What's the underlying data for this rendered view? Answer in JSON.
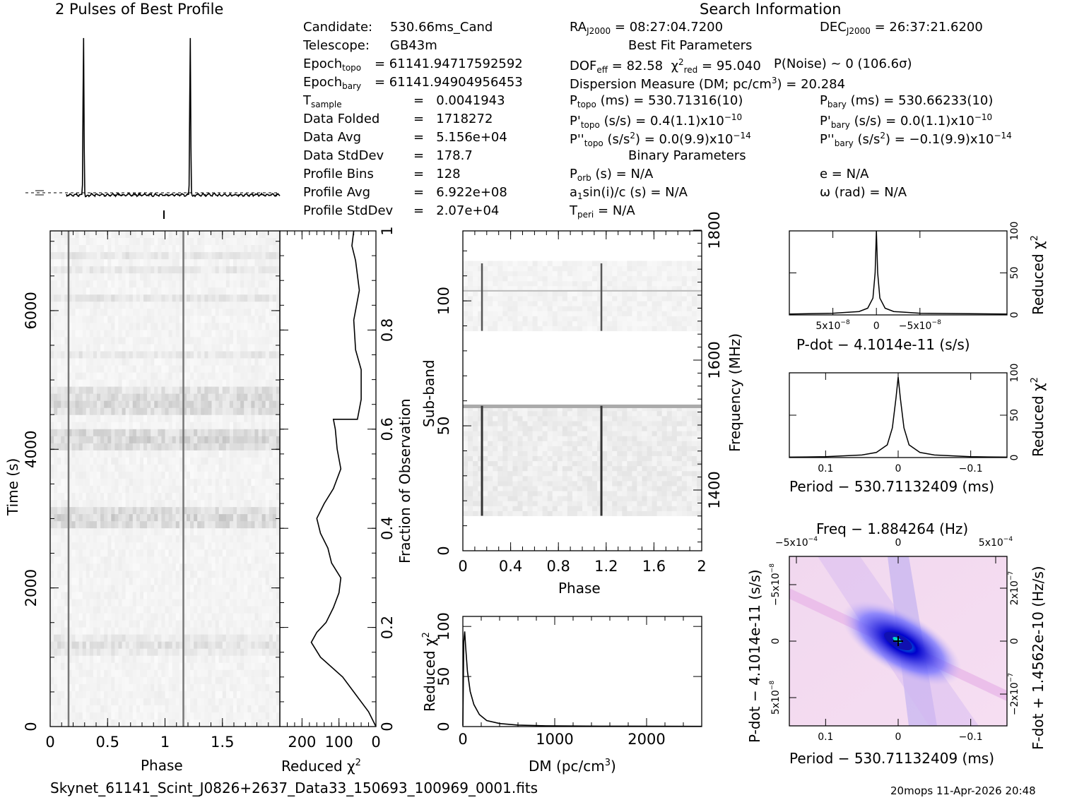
{
  "header": {
    "profile_title": "2 Pulses of Best Profile",
    "search_title": "Search Information"
  },
  "info_left": [
    {
      "k": "Candidate:",
      "v": "530.66ms_Cand"
    },
    {
      "k": "Telescope:",
      "v": "GB43m"
    },
    {
      "k": "Epoch",
      "sub": "topo",
      "v": "= 61141.94717592592"
    },
    {
      "k": "Epoch",
      "sub": "bary",
      "v": "= 61141.94904956453"
    },
    {
      "k": "T",
      "sub": "sample",
      "v": "=   0.0041943"
    },
    {
      "k": "Data Folded",
      "v": "=   1718272"
    },
    {
      "k": "Data Avg",
      "v": "=   5.156e+04"
    },
    {
      "k": "Data StdDev",
      "v": "=   178.7"
    },
    {
      "k": "Profile Bins",
      "v": "=   128"
    },
    {
      "k": "Profile Avg",
      "v": "=   6.922e+08"
    },
    {
      "k": "Profile StdDev",
      "v": "=   2.07e+04"
    }
  ],
  "info_mid": {
    "ra": "RA",
    "ra_sub": "J2000",
    "ra_val": "= 08:27:04.7200",
    "best_fit_title": "Best Fit Parameters",
    "dof": "DOF",
    "dof_sub": "eff",
    "dof_val": "= 82.58",
    "chi": "χ",
    "chi_sup": "2",
    "chi_sub": "red",
    "chi_val": "= 95.040",
    "pnoise": "P(Noise) ~ 0    (106.6σ)",
    "dm_line": "Dispersion Measure (DM; pc/cm",
    "dm_sup": "3",
    "dm_val": ") = 20.284",
    "ptopo": "P",
    "ptopo_sub": "topo",
    "ptopo_val": "(ms) =  530.71316(10)",
    "pdtopo": "P'",
    "pdtopo_sub": "topo",
    "pdtopo_val": "(s/s) =  0.4(1.1)x10",
    "pdtopo_exp": "−10",
    "pddtopo": "P''",
    "pddtopo_sub": "topo",
    "pddtopo_val": "(s/s",
    "pddtopo_sup": "2",
    "pddtopo_val2": ") = 0.0(9.9)x10",
    "pddtopo_exp": "−14",
    "binary_title": "Binary Parameters",
    "porb": "P",
    "porb_sub": "orb",
    "porb_val": "(s) = N/A",
    "a1": "a",
    "a1_sub": "1",
    "a1_val": "sin(i)/c (s) = N/A",
    "tperi": "T",
    "tperi_sub": "peri",
    "tperi_val": "= N/A"
  },
  "info_right": {
    "dec": "DEC",
    "dec_sub": "J2000",
    "dec_val": "= 26:37:21.6200",
    "pbary": "P",
    "pbary_sub": "bary",
    "pbary_val": "(ms) =  530.66233(10)",
    "pdbary": "P'",
    "pdbary_sub": "bary",
    "pdbary_val": "(s/s) = 0.0(1.1)x10",
    "pdbary_exp": "−10",
    "pddbary": "P''",
    "pddbary_sub": "bary",
    "pddbary_val": "(s/s",
    "pddbary_sup": "2",
    "pddbary_val2": ") = −0.1(9.9)x10",
    "pddbary_exp": "−14",
    "e": "e = N/A",
    "omega": "ω (rad) = N/A"
  },
  "footer": {
    "filename": "Skynet_61141_Scint_J0826+2637_Data33_150693_100969_0001.fits",
    "stamp": "20mops 11-Apr-2026 20:48"
  },
  "chart_data": [
    {
      "id": "pulse_profile",
      "type": "line",
      "title": "2 Pulses of Best Profile",
      "xlabel": "",
      "ylabel": "",
      "x_range": [
        0,
        2
      ],
      "peaks_phase": [
        0.16,
        1.16
      ]
    },
    {
      "id": "time_phase",
      "type": "heatmap",
      "xlabel": "Phase",
      "ylabel": "Time (s)",
      "xlim": [
        0,
        2
      ],
      "ylim": [
        0,
        7150
      ],
      "x_ticks": [
        "0",
        "0.5",
        "1",
        "1.5"
      ],
      "y_ticks": [
        "0",
        "2000",
        "4000",
        "6000"
      ],
      "pulse_phases": [
        0.16,
        1.16
      ]
    },
    {
      "id": "time_chi2",
      "type": "line",
      "xlabel": "Reduced χ",
      "xlabel_sup": "2",
      "ylabel_right": "Fraction of Observation",
      "xlim": [
        260,
        0
      ],
      "ylim": [
        0,
        1
      ],
      "x_ticks": [
        "200",
        "100",
        "0"
      ],
      "y_ticks": [
        "0",
        "0.2",
        "0.4",
        "0.6",
        "0.8",
        "1"
      ],
      "points": [
        [
          0,
          0
        ],
        [
          20,
          0.03
        ],
        [
          50,
          0.06
        ],
        [
          90,
          0.1
        ],
        [
          150,
          0.14
        ],
        [
          175,
          0.17
        ],
        [
          160,
          0.19
        ],
        [
          135,
          0.21
        ],
        [
          115,
          0.24
        ],
        [
          100,
          0.27
        ],
        [
          95,
          0.3
        ],
        [
          120,
          0.33
        ],
        [
          130,
          0.36
        ],
        [
          150,
          0.39
        ],
        [
          160,
          0.42
        ],
        [
          140,
          0.45
        ],
        [
          115,
          0.48
        ],
        [
          95,
          0.52
        ],
        [
          105,
          0.56
        ],
        [
          110,
          0.6
        ],
        [
          115,
          0.62
        ],
        [
          50,
          0.62
        ],
        [
          40,
          0.66
        ],
        [
          40,
          0.72
        ],
        [
          55,
          0.76
        ],
        [
          60,
          0.82
        ],
        [
          45,
          0.88
        ],
        [
          55,
          0.94
        ],
        [
          65,
          0.97
        ],
        [
          60,
          1.0
        ]
      ]
    },
    {
      "id": "subband_phase",
      "type": "heatmap",
      "xlabel": "Phase",
      "ylabel": "Sub-band",
      "ylabel_right": "Frequency (MHz)",
      "xlim": [
        0,
        2
      ],
      "ylim": [
        0,
        128
      ],
      "x_ticks": [
        "0",
        "0.4",
        "0.8",
        "1.2",
        "1.6",
        "2"
      ],
      "y_ticks": [
        "0",
        "50",
        "100"
      ],
      "right_ticks": [
        "1400",
        "1600",
        "1800"
      ],
      "pulse_phases": [
        0.16,
        1.16
      ],
      "masked_bands": [
        [
          58,
          88
        ],
        [
          115,
          128
        ],
        [
          0,
          14
        ]
      ]
    },
    {
      "id": "dm_curve",
      "type": "line",
      "xlabel": "DM (pc/cm",
      "xlabel_sup": "3",
      "ylabel": "Reduced χ",
      "ylabel_sup": "2",
      "xlim": [
        0,
        2600
      ],
      "ylim": [
        0,
        110
      ],
      "x_ticks": [
        "0",
        "1000",
        "2000"
      ],
      "y_ticks": [
        "0",
        "50",
        "100"
      ],
      "points": [
        [
          0,
          1
        ],
        [
          10,
          85
        ],
        [
          20,
          95
        ],
        [
          30,
          80
        ],
        [
          50,
          55
        ],
        [
          80,
          35
        ],
        [
          120,
          22
        ],
        [
          180,
          12
        ],
        [
          260,
          6
        ],
        [
          400,
          3
        ],
        [
          600,
          1.5
        ],
        [
          900,
          0.8
        ],
        [
          1500,
          0.4
        ],
        [
          2600,
          0.2
        ]
      ]
    },
    {
      "id": "pdot_curve",
      "type": "line",
      "xlabel": "P-dot − 4.1014e-11 (s/s)",
      "ylabel_right": "Reduced χ",
      "ylabel_sup": "2",
      "xlim": [
        1e-07,
        -1.5e-07
      ],
      "ylim": [
        0,
        100
      ],
      "x_ticks": [
        "5x10",
        "0",
        "−5x10"
      ],
      "x_tick_exp": "−8",
      "y_ticks": [
        "0",
        "50",
        "100"
      ],
      "points": [
        [
          1e-07,
          1
        ],
        [
          5e-08,
          2
        ],
        [
          2e-08,
          4
        ],
        [
          1e-08,
          8
        ],
        [
          4e-09,
          20
        ],
        [
          1.5e-09,
          50
        ],
        [
          0,
          100
        ],
        [
          -1.5e-09,
          50
        ],
        [
          -4e-09,
          20
        ],
        [
          -1e-08,
          8
        ],
        [
          -2e-08,
          4
        ],
        [
          -5e-08,
          2
        ],
        [
          -1.5e-07,
          1
        ]
      ]
    },
    {
      "id": "period_curve",
      "type": "line",
      "xlabel": "Period − 530.71132409 (ms)",
      "ylabel_right": "Reduced χ",
      "ylabel_sup": "2",
      "xlim": [
        0.15,
        -0.15
      ],
      "ylim": [
        0,
        100
      ],
      "x_ticks": [
        "0.1",
        "0",
        "−0.1"
      ],
      "y_ticks": [
        "0",
        "50",
        "100"
      ],
      "points": [
        [
          0.15,
          0.5
        ],
        [
          0.1,
          1
        ],
        [
          0.05,
          3
        ],
        [
          0.03,
          6
        ],
        [
          0.015,
          15
        ],
        [
          0.008,
          35
        ],
        [
          0.003,
          70
        ],
        [
          0,
          95
        ],
        [
          -0.003,
          70
        ],
        [
          -0.008,
          35
        ],
        [
          -0.015,
          15
        ],
        [
          -0.03,
          6
        ],
        [
          -0.05,
          3
        ],
        [
          -0.1,
          1
        ],
        [
          -0.15,
          0.5
        ]
      ]
    },
    {
      "id": "p_pdot_plane",
      "type": "heatmap",
      "title": "Freq − 1.884264 (Hz)",
      "xlabel": "Period − 530.71132409 (ms)",
      "ylabel": "P-dot − 4.1014e-11 (s/s)",
      "ylabel_right": "F-dot + 1.4562e-10 (Hz/s)",
      "x_ticks": [
        "0.1",
        "0",
        "−0.1"
      ],
      "top_ticks": [
        "−5x10",
        "0",
        "5x10"
      ],
      "top_tick_exp": "−4",
      "left_ticks": [
        "−5x10",
        "0",
        "5x10"
      ],
      "left_tick_exp": "−8",
      "right_ticks": [
        "2x10",
        "0",
        "−2x10"
      ],
      "right_tick_exp": "−7",
      "best_point": [
        0,
        0
      ]
    }
  ]
}
